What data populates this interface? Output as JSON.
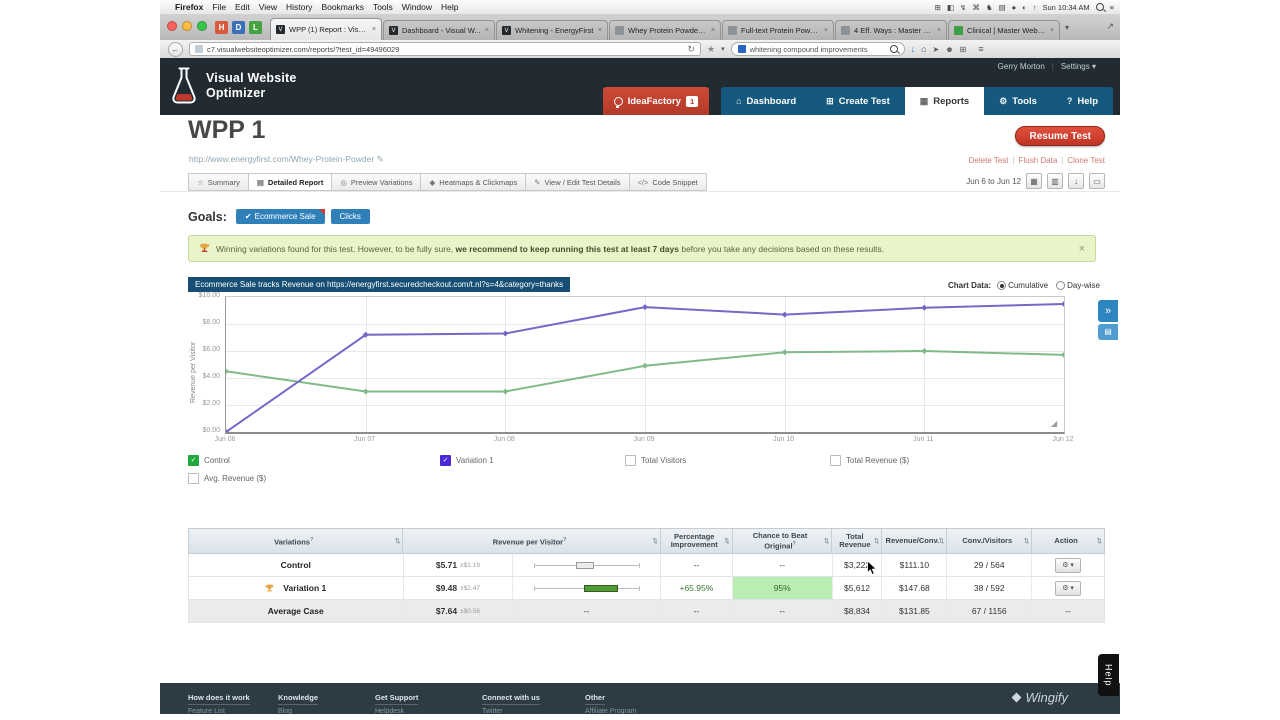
{
  "menu_bar": {
    "apple": "",
    "items": [
      "Firefox",
      "File",
      "Edit",
      "View",
      "History",
      "Bookmarks",
      "Tools",
      "Window",
      "Help"
    ],
    "status_icons": [
      "⊞",
      "◧",
      "↯",
      "⌘",
      "♞",
      "▤",
      "●",
      "◐",
      "↑"
    ],
    "clock": "Sun 10:34 AM"
  },
  "browser": {
    "pinned": [
      {
        "label": "H",
        "color": "#d9593c",
        "name": "pinned-app-h"
      },
      {
        "label": "D",
        "color": "#3b6fb6",
        "name": "pinned-app-d"
      },
      {
        "label": "L",
        "color": "#44a340",
        "name": "pinned-app-l"
      }
    ],
    "tabs": [
      {
        "title": "WPP (1) Report : Visu...",
        "favicon": "dark",
        "active": true
      },
      {
        "title": "Dashboard - Visual W...",
        "favicon": "dark",
        "active": false
      },
      {
        "title": "Whitening - EnergyFirst",
        "favicon": "dark",
        "active": false
      },
      {
        "title": "Whey Protein Powder I...",
        "favicon": "gray",
        "active": false
      },
      {
        "title": "Full-text Protein Powd...",
        "favicon": "gray",
        "active": false
      },
      {
        "title": "4 Eff. Ways : Master Website",
        "favicon": "gray",
        "active": false
      },
      {
        "title": "Clinical | Master Webs...",
        "favicon": "green",
        "active": false
      }
    ],
    "url": "c7.visualwebsiteoptimizer.com/reports/?test_id=49496029",
    "search_query": "whitening compound improvements"
  },
  "vwo": {
    "logo_line1": "Visual Website",
    "logo_line2": "Optimizer",
    "user_name": "Gerry Morton",
    "settings_label": "Settings",
    "nav": [
      {
        "label": "IdeaFactory",
        "icon": "bulb",
        "badge": "1",
        "style": "red"
      },
      {
        "label": "Dashboard",
        "icon": "home"
      },
      {
        "label": "Create Test",
        "icon": "flaskplus"
      },
      {
        "label": "Reports",
        "icon": "report",
        "active": true
      },
      {
        "label": "Tools",
        "icon": "gear"
      },
      {
        "label": "Help",
        "icon": "question"
      }
    ]
  },
  "test": {
    "title": "WPP 1",
    "url": "http://www.energyfirst.com/Whey-Protein-Powder",
    "edit_icon": "✎",
    "resume_button": "Resume Test",
    "links": [
      "Delete Test",
      "Flush Data",
      "Clone Test"
    ]
  },
  "report_tabs": [
    {
      "label": "Summary",
      "icon": "star"
    },
    {
      "label": "Detailed Report",
      "icon": "chart",
      "active": true
    },
    {
      "label": "Preview Variations",
      "icon": "magnifier"
    },
    {
      "label": "Heatmaps & Clickmaps",
      "icon": "heat"
    },
    {
      "label": "View / Edit Test Details",
      "icon": "pencil"
    },
    {
      "label": "Code Snippet",
      "icon": "code"
    }
  ],
  "date_range": "Jun 6 to Jun 12",
  "goals": {
    "label": "Goals:",
    "buttons": [
      {
        "label": "Ecommerce Sale",
        "checked": true
      },
      {
        "label": "Clicks",
        "checked": false
      }
    ]
  },
  "alert": {
    "text_before": "Winning variations found for this test. However, to be fully sure, ",
    "text_bold": "we recommend to keep running this test at least 7 days",
    "text_after": " before you take any decisions based on these results.",
    "close": "×"
  },
  "chart_data": {
    "type": "line",
    "title": "Ecommerce Sale tracks Revenue on https://energyfirst.securedcheckout.com/t.nl?s=4&category=thanks",
    "mode_label": "Chart Data:",
    "modes": [
      {
        "label": "Cumulative",
        "selected": true
      },
      {
        "label": "Day-wise",
        "selected": false
      }
    ],
    "x_categories": [
      "Jun 06",
      "Jun 07",
      "Jun 08",
      "Jun 09",
      "Jun 10",
      "Jun 11",
      "Jun 12"
    ],
    "series": [
      {
        "name": "Control",
        "color": "#82b989",
        "values": [
          4.5,
          3.0,
          3.0,
          4.9,
          5.9,
          6.0,
          5.71
        ]
      },
      {
        "name": "Variation 1",
        "color": "#7668c9",
        "values": [
          0,
          7.2,
          7.3,
          9.25,
          8.7,
          9.2,
          9.48
        ]
      }
    ],
    "ylabel": "Revenue per Visitor",
    "ylim": [
      0,
      10
    ],
    "ytick_labels": [
      "$10.00",
      "$8.00",
      "$6.00",
      "$4.00",
      "$2.00",
      "$0.00"
    ],
    "grid": true,
    "legend_position": "bottom"
  },
  "legend": [
    {
      "label": "Control",
      "swatch": "#1fa93c",
      "checked": true
    },
    {
      "label": "Variation 1",
      "swatch": "#4c2bd6",
      "checked": true
    },
    {
      "label": "Total Visitors",
      "swatch": "",
      "checked": false
    },
    {
      "label": "Total Revenue ($)",
      "swatch": "",
      "checked": false
    },
    {
      "label": "Avg. Revenue ($)",
      "swatch": "",
      "checked": false
    }
  ],
  "table": {
    "headers": [
      "Variations",
      "Revenue per Visitor",
      "Percentage Improvement",
      "Chance to Beat Original",
      "Total Revenue",
      "Revenue/Conv.",
      "Conv./Visitors",
      "Action"
    ],
    "rows": [
      {
        "name": "Control",
        "winner": false,
        "average": false,
        "rpv": "$5.71",
        "rpv_delta": "±$1.19",
        "boxplot": "gray",
        "improvement": "--",
        "chance": "--",
        "chance_green": false,
        "total_revenue": "$3,222",
        "revenue_per_conv": "$111.10",
        "conv_visitors": "29 / 564",
        "action": "gear"
      },
      {
        "name": "Variation 1",
        "winner": true,
        "average": false,
        "rpv": "$9.48",
        "rpv_delta": "±$2.47",
        "boxplot": "green",
        "improvement": "+65.95%",
        "chance": "95%",
        "chance_green": true,
        "total_revenue": "$5,612",
        "revenue_per_conv": "$147.68",
        "conv_visitors": "38 / 592",
        "action": "gear"
      },
      {
        "name": "Average Case",
        "winner": false,
        "average": true,
        "rpv": "$7.64",
        "rpv_delta": "±$0.56",
        "boxplot": "none",
        "improvement": "--",
        "chance": "--",
        "chance_green": false,
        "total_revenue": "$8,834",
        "revenue_per_conv": "$131.85",
        "conv_visitors": "67 / 1156",
        "action": "--"
      }
    ]
  },
  "footer": {
    "columns": [
      {
        "heading": "How does it work",
        "links": [
          "Feature List"
        ]
      },
      {
        "heading": "Knowledge",
        "links": [
          "Blog"
        ]
      },
      {
        "heading": "Get Support",
        "links": [
          "Helpdesk"
        ]
      },
      {
        "heading": "Connect with us",
        "links": [
          "Twitter"
        ]
      },
      {
        "heading": "Other",
        "links": [
          "Affiliate Program"
        ]
      }
    ],
    "brand": "Wingify"
  },
  "help_tab": "Help"
}
